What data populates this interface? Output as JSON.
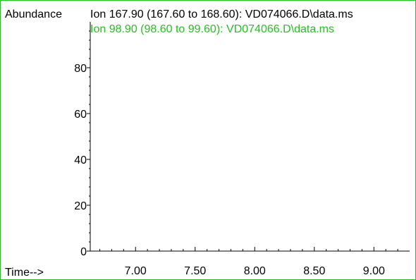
{
  "chart_data": {
    "type": "line",
    "ylabel": "Abundance",
    "xlabel": "Time-->",
    "x_ticks": [
      7.0,
      7.5,
      8.0,
      8.5,
      9.0
    ],
    "x_tick_labels": [
      "7.00",
      "7.50",
      "8.00",
      "8.50",
      "9.00"
    ],
    "y_ticks": [
      0,
      20,
      40,
      60,
      80
    ],
    "y_tick_labels": [
      "0",
      "20",
      "40",
      "60",
      "80"
    ],
    "xlim": [
      6.62,
      9.3
    ],
    "ylim": [
      0,
      100
    ],
    "series": [
      {
        "name": "Ion 167.90 (167.60 to 168.60): VD074066.D\\data.ms",
        "color": "#000000",
        "x": [],
        "values": []
      },
      {
        "name": "Ion  98.90 (98.60 to 99.60): VD074066.D\\data.ms",
        "color": "#22c31e",
        "x": [],
        "values": []
      }
    ],
    "frame_color": "#22c31e",
    "grid": false
  }
}
